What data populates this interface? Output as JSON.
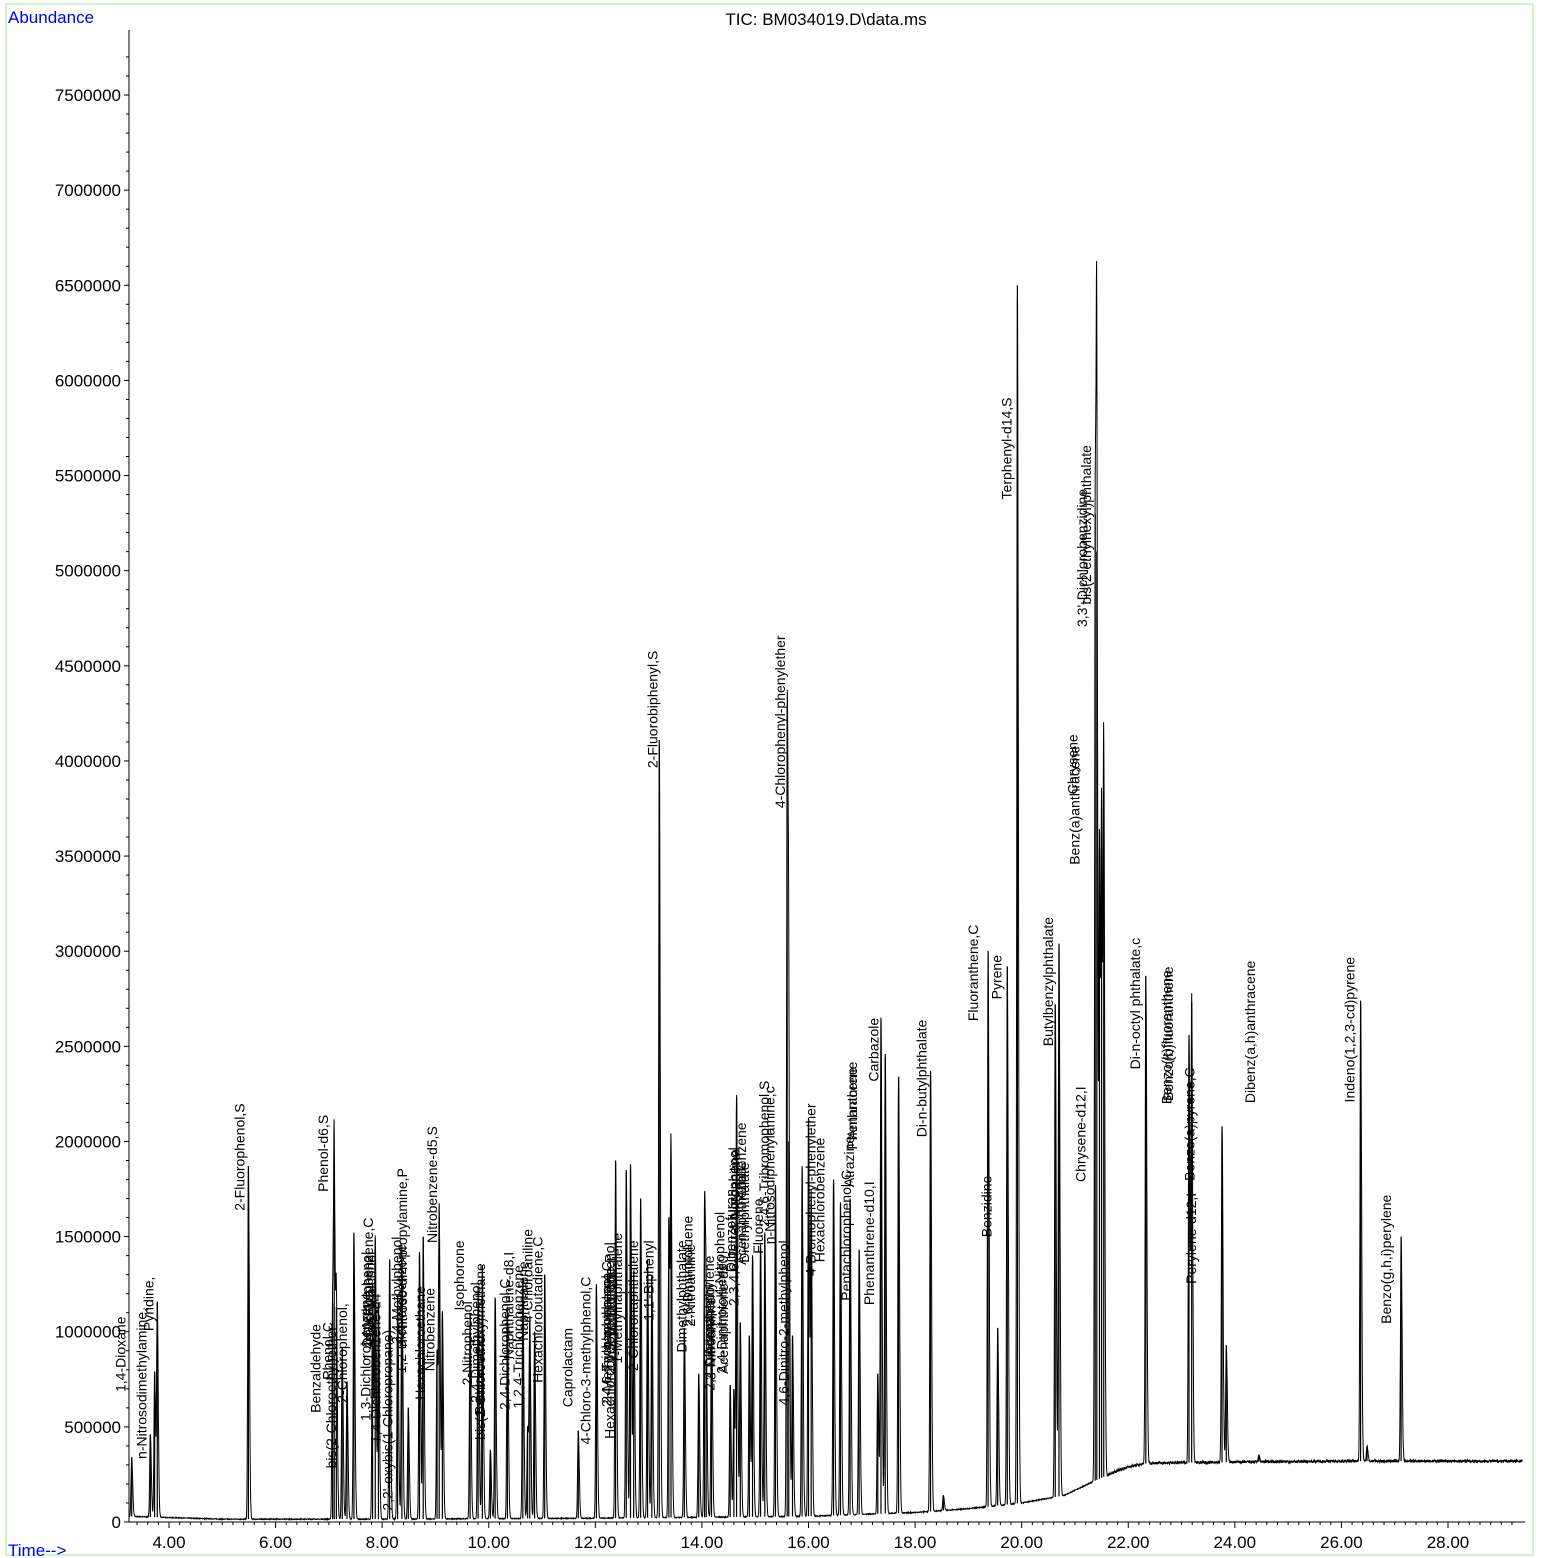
{
  "chart_data": {
    "type": "line",
    "title": "TIC: BM034019.D\\data.ms",
    "ylabel": "Abundance",
    "xlabel": "Time-->",
    "xlim": [
      3.2,
      29.4
    ],
    "ylim": [
      0,
      7800000
    ],
    "x_ticks": [
      "4.00",
      "6.00",
      "8.00",
      "10.00",
      "12.00",
      "14.00",
      "16.00",
      "18.00",
      "20.00",
      "22.00",
      "24.00",
      "26.00",
      "28.00"
    ],
    "y_ticks": [
      "0",
      "500000",
      "1000000",
      "1500000",
      "2000000",
      "2500000",
      "3000000",
      "3500000",
      "4000000",
      "4500000",
      "5000000",
      "5500000",
      "6000000",
      "6500000",
      "7000000",
      "7500000"
    ],
    "baseline": [
      [
        3.2,
        30000
      ],
      [
        5.0,
        15000
      ],
      [
        8.0,
        15000
      ],
      [
        12.0,
        20000
      ],
      [
        16.0,
        30000
      ],
      [
        18.0,
        50000
      ],
      [
        19.0,
        70000
      ],
      [
        20.0,
        100000
      ],
      [
        20.8,
        140000
      ],
      [
        21.4,
        220000
      ],
      [
        21.8,
        270000
      ],
      [
        22.0,
        290000
      ],
      [
        22.4,
        310000
      ],
      [
        24.0,
        315000
      ],
      [
        26.0,
        320000
      ],
      [
        29.4,
        320000
      ]
    ],
    "peaks": [
      {
        "rt": 3.3,
        "h": 340000,
        "label": "1,4-Dioxane"
      },
      {
        "rt": 3.65,
        "h": 460000,
        "label": ""
      },
      {
        "rt": 3.73,
        "h": 790000,
        "label": "n-Nitrosodimethylamine,"
      },
      {
        "rt": 3.78,
        "h": 1150000,
        "label": "Pyridine,"
      },
      {
        "rt": 5.49,
        "h": 1870000,
        "label": "2-Fluorophenol,S"
      },
      {
        "rt": 7.07,
        "h": 1150000,
        "label": "Benzaldehyde"
      },
      {
        "rt": 7.1,
        "h": 1800000,
        "label": "Phenol-d6,S"
      },
      {
        "rt": 7.14,
        "h": 1130000,
        "label": "Phenol,C"
      },
      {
        "rt": 7.25,
        "h": 920000,
        "label": "bis(2-Chloroethyl)ether"
      },
      {
        "rt": 7.34,
        "h": 740000,
        "label": "2-Chlorophenol,"
      },
      {
        "rt": 7.47,
        "h": 1520000,
        "label": ""
      },
      {
        "rt": 7.82,
        "h": 1250000,
        "label": "1,3-Dichlorobenzene"
      },
      {
        "rt": 7.87,
        "h": 1480000,
        "label": "1,4-Dichlorobenzene,C"
      },
      {
        "rt": 7.93,
        "h": 1150000,
        "label": "1,4-Dichlorobenzene-d4"
      },
      {
        "rt": 8.14,
        "h": 1380000,
        "label": "Benzyl alcohol"
      },
      {
        "rt": 8.29,
        "h": 1190000,
        "label": "2-Methylphenol"
      },
      {
        "rt": 8.37,
        "h": 1420000,
        "label": "1,2-Dichlorobenzene"
      },
      {
        "rt": 8.49,
        "h": 600000,
        "label": "2,2'-oxybis(1-Chloropropane)"
      },
      {
        "rt": 8.7,
        "h": 1420000,
        "label": "3,4-Methylphenol"
      },
      {
        "rt": 8.77,
        "h": 1500000,
        "label": "n-Nitroso-di-n-propylamine,P"
      },
      {
        "rt": 9.03,
        "h": 900000,
        "label": "Hexachloroethane"
      },
      {
        "rt": 9.07,
        "h": 1600000,
        "label": "Nitrobenzene-d5,S"
      },
      {
        "rt": 9.13,
        "h": 1100000,
        "label": "Nitrobenzene"
      },
      {
        "rt": 9.65,
        "h": 1100000,
        "label": "Isophorone"
      },
      {
        "rt": 9.8,
        "h": 1240000,
        "label": "2-Nitrophenol"
      },
      {
        "rt": 9.88,
        "h": 1350000,
        "label": "2,4-Dimethylphenol"
      },
      {
        "rt": 10.03,
        "h": 380000,
        "label": "Benzoic acid"
      },
      {
        "rt": 10.12,
        "h": 1180000,
        "label": "bis(2-Chloroethoxy)methane"
      },
      {
        "rt": 10.35,
        "h": 1130000,
        "label": "2,4-Dichlorophenol,C"
      },
      {
        "rt": 10.64,
        "h": 1280000,
        "label": "1,2,4-Trichlorobenzene"
      },
      {
        "rt": 10.73,
        "h": 500000,
        "label": "Naphthalene-d8,I"
      },
      {
        "rt": 10.77,
        "h": 1040000,
        "label": "Naphthalene"
      },
      {
        "rt": 10.86,
        "h": 1000000,
        "label": "4-Chloroaniline"
      },
      {
        "rt": 11.05,
        "h": 1300000,
        "label": "Hexachlorobutadiene,C"
      },
      {
        "rt": 11.68,
        "h": 480000,
        "label": "Caprolactam"
      },
      {
        "rt": 12.02,
        "h": 1250000,
        "label": "4-Chloro-3-methylphenol,C"
      },
      {
        "rt": 12.38,
        "h": 1900000,
        "label": "2-Methylnaphthalene"
      },
      {
        "rt": 12.58,
        "h": 1850000,
        "label": "1-Methylnaphthalene"
      },
      {
        "rt": 12.66,
        "h": 1880000,
        "label": "Hexachlorocyclopentadiene,P"
      },
      {
        "rt": 12.72,
        "h": 1320000,
        "label": "2,4,6-Trichlorophenol,C"
      },
      {
        "rt": 12.85,
        "h": 1700000,
        "label": "2,4,5-Trichlorophenol"
      },
      {
        "rt": 12.98,
        "h": 1380000,
        "label": "1,1'-Biphenyl"
      },
      {
        "rt": 13.06,
        "h": 1300000,
        "label": "2-Chloronaphthalene"
      },
      {
        "rt": 13.2,
        "h": 4110000,
        "label": "2-Fluorobiphenyl,S"
      },
      {
        "rt": 13.38,
        "h": 1600000,
        "label": "2-Nitroaniline"
      },
      {
        "rt": 13.42,
        "h": 1900000,
        "label": ""
      },
      {
        "rt": 13.67,
        "h": 1020000,
        "label": ""
      },
      {
        "rt": 13.94,
        "h": 780000,
        "label": "Dimethylphthalate"
      },
      {
        "rt": 14.05,
        "h": 1700000,
        "label": "2,6-Dinitrotoluene"
      },
      {
        "rt": 14.08,
        "h": 850000,
        "label": "Acenaphthylene"
      },
      {
        "rt": 14.18,
        "h": 1100000,
        "label": "3-Nitroaniline"
      },
      {
        "rt": 14.53,
        "h": 720000,
        "label": "Acenaphthene-d10"
      },
      {
        "rt": 14.6,
        "h": 700000,
        "label": "Acenaphthene,C"
      },
      {
        "rt": 14.65,
        "h": 2230000,
        "label": "2,4-Dinitrophenol"
      },
      {
        "rt": 14.72,
        "h": 1050000,
        "label": "4-Nitrophenol"
      },
      {
        "rt": 14.89,
        "h": 980000,
        "label": "Dibenzofuran"
      },
      {
        "rt": 14.95,
        "h": 1400000,
        "label": "2,4-Dinitrotoluene"
      },
      {
        "rt": 15.1,
        "h": 1460000,
        "label": "2,3,4,6-Tetrachlorophenol"
      },
      {
        "rt": 15.18,
        "h": 1520000,
        "label": "Diethylphthalate"
      },
      {
        "rt": 15.38,
        "h": 1770000,
        "label": "4-Nitroaniline"
      },
      {
        "rt": 15.6,
        "h": 4270000,
        "label": "4-Chlorophenyl-phenylether"
      },
      {
        "rt": 15.63,
        "h": 2000000,
        "label": "Fluorene"
      },
      {
        "rt": 15.7,
        "h": 980000,
        "label": "4,6-Dinitro-2-methylphenol"
      },
      {
        "rt": 15.88,
        "h": 1870000,
        "label": "Azobenzene"
      },
      {
        "rt": 16.0,
        "h": 2120000,
        "label": "n-Nitrosodiphenylamine,c"
      },
      {
        "rt": 16.05,
        "h": 1700000,
        "label": "2,4,6-Tribromophenol,S"
      },
      {
        "rt": 16.47,
        "h": 1800000,
        "label": "4-Bromophenyl-phenylether"
      },
      {
        "rt": 16.6,
        "h": 1680000,
        "label": "Hexachlorobenzene"
      },
      {
        "rt": 16.78,
        "h": 1700000,
        "label": "Atrazine"
      },
      {
        "rt": 16.95,
        "h": 1430000,
        "label": "Pentachlorophenol,C"
      },
      {
        "rt": 17.3,
        "h": 780000,
        "label": "Phenanthrene-d10,I"
      },
      {
        "rt": 17.36,
        "h": 2650000,
        "label": "Phenanthrene"
      },
      {
        "rt": 17.44,
        "h": 2460000,
        "label": "Anthracene"
      },
      {
        "rt": 17.69,
        "h": 2340000,
        "label": "Carbazole"
      },
      {
        "rt": 18.29,
        "h": 2370000,
        "label": "Di-n-butylphthalate"
      },
      {
        "rt": 18.53,
        "h": 140000,
        "label": ""
      },
      {
        "rt": 19.37,
        "h": 3000000,
        "label": "Fluoranthene,C"
      },
      {
        "rt": 19.55,
        "h": 1020000,
        "label": "Benzidine"
      },
      {
        "rt": 19.73,
        "h": 2920000,
        "label": "Pyrene"
      },
      {
        "rt": 19.92,
        "h": 6500000,
        "label": "Terphenyl-d14,S"
      },
      {
        "rt": 20.63,
        "h": 2720000,
        "label": ""
      },
      {
        "rt": 20.7,
        "h": 3040000,
        "label": "Butylbenzylphthalate"
      },
      {
        "rt": 21.38,
        "h": 5300000,
        "label": "3,3'-Dichlorobenzidine"
      },
      {
        "rt": 21.41,
        "h": 5100000,
        "label": "bis(2-ethylhexyl)phthalate"
      },
      {
        "rt": 21.46,
        "h": 3540000,
        "label": "Chrysene-d12,I"
      },
      {
        "rt": 21.5,
        "h": 3540000,
        "label": "Chrysene"
      },
      {
        "rt": 21.54,
        "h": 3900000,
        "label": "Benz(a)anthracene"
      },
      {
        "rt": 22.33,
        "h": 2870000,
        "label": "Di-n-octyl phthalate,c"
      },
      {
        "rt": 23.14,
        "h": 2560000,
        "label": "Benzo(b)fluoranthene"
      },
      {
        "rt": 23.19,
        "h": 2730000,
        "label": "Benzo(k)fluoranthene"
      },
      {
        "rt": 23.76,
        "h": 2080000,
        "label": "Perylene-d12,I"
      },
      {
        "rt": 23.84,
        "h": 930000,
        "label": "Benzo(a)pyrene,C"
      },
      {
        "rt": 24.45,
        "h": 350000,
        "label": ""
      },
      {
        "rt": 26.36,
        "h": 2740000,
        "label": "Indeno(1,2,3-cd)pyrene"
      },
      {
        "rt": 26.48,
        "h": 400000,
        "label": "Dibenz(a,h)anthracene"
      },
      {
        "rt": 27.12,
        "h": 1500000,
        "label": "Benzo(g,h,i)perylene"
      }
    ],
    "label_tops": {
      "1,4-Dioxane": 1080000,
      "n-Nitrosodimethylamine,": 1125000,
      "Pyridine,": 1290000,
      "2-Fluorophenol,S": 2200000,
      "Benzaldehyde": 1040000,
      "Phenol-d6,S": 2140000,
      "Phenol,C": 1050000,
      "bis(2-Chloroethyl)ether": 1030000,
      "2-Chlorophenol,": 1150000,
      "1,3-Dichlorobenzene": 1210000,
      "1,4-Dichlorobenzene,C": 1600000,
      "1,4-Dichlorobenzene-d4": 1200000,
      "Benzyl alcohol": 1420000,
      "2-Methylphenol": 1420000,
      "1,2-Dichlorobenzene": 1460000,
      "2,2'-oxybis(1-Chloropropane)": 1010000,
      "3,4-Methylphenol": 1500000,
      "n-Nitroso-di-n-propylamine,P": 1860000,
      "Hexachloroethane": 1240000,
      "Nitrobenzene-d5,S": 2080000,
      "Nitrobenzene": 1230000,
      "Isophorone": 1480000,
      "2-Nitrophenol": 1160000,
      "2,4-Dimethylphenol": 1260000,
      "Benzoic acid": 980000,
      "bis(2-Chloroethoxy)methane": 1360000,
      "2,4-Dichlorophenol,C": 1280000,
      "1,2,4-Trichlorobenzene": 1350000,
      "Naphthalene-d8,I": 1420000,
      "Naphthalene": 1370000,
      "4-Chloroaniline": 1540000,
      "Hexachlorobutadiene,C": 1500000,
      "Caprolactam": 1020000,
      "4-Chloro-3-methylphenol,C": 1290000,
      "2-Methylnaphthalene": 1310000,
      "1-Methylnaphthalene": 1520000,
      "Hexachlorocyclopentadiene,P": 1410000,
      "2,4,6-Trichlorophenol,C": 1370000,
      "2,4,5-Trichlorophenol": 1470000,
      "1,1'-Biphenyl": 1480000,
      "2-Chloronaphthalene": 1480000,
      "2-Fluorobiphenyl,S": 4580000,
      "2-Nitroaniline": 1460000,
      "Dimethylphthalate": 1480000,
      "2,6-Dinitrotoluene": 1610000,
      "Acenaphthylene": 1400000,
      "3-Nitroaniline": 1180000,
      "Acenaphthene-d10": 1400000,
      "Acenaphthene,C": 1900000,
      "2,4-Dinitrophenol": 1250000,
      "4-Nitrophenol": 1630000,
      "Dibenzofuran": 1750000,
      "2,4-Dinitrotoluene": 1360000,
      "2,3,4,6-Tetrachlorophenol": 1970000,
      "Diethylphthalate": 1890000,
      "4-Nitroaniline": 1960000,
      "4-Chlorophenyl-phenylether": 4660000,
      "Fluorene": 1700000,
      "4,6-Dinitro-2-methylphenol": 1480000,
      "Azobenzene": 2100000,
      "n-Nitrosodiphenylamine,c": 2290000,
      "2,4,6-Tribromophenol,S": 2320000,
      "4-Bromophenyl-phenylether": 2200000,
      "Hexachlorobenzene": 2020000,
      "Atrazine": 2030000,
      "Pentachlorophenol,C": 1850000,
      "Phenanthrene-d10,I": 1790000,
      "Phenanthrene": 2420000,
      "Anthracene": 2390000,
      "Carbazole": 2650000,
      "Di-n-butylphthalate": 2640000,
      "Fluoranthene,C": 3140000,
      "Benzidine": 1820000,
      "Pyrene": 2980000,
      "Terphenyl-d14,S": 5910000,
      "Butylbenzylphthalate": 3180000,
      "3,3'-Dichlorobenzidine": 5430000,
      "bis(2-ethylhexyl)phthalate": 5660000,
      "Chrysene-d12,I": 2290000,
      "Chrysene": 4140000,
      "Benz(a)anthracene": 4080000,
      "Di-n-octyl phthalate,c": 3070000,
      "Benzo(b)fluoranthene": 2920000,
      "Benzo(k)fluoranthene": 2900000,
      "Perylene-d12,I": 1730000,
      "Benzo(a)pyrene,C": 2390000,
      "Indeno(1,2,3-cd)pyrene": 2970000,
      "Dibenz(a,h)anthracene": 2950000,
      "Benzo(g,h,i)perylene": 1720000
    },
    "label_dx": {
      "2-Methylnaphthalene": -8,
      "1-Methylnaphthalene": -8,
      "Hexachlorocyclopentadiene,P": -20,
      "2,4,6-Trichlorophenol,C": -26,
      "2,4,5-Trichlorophenol": -30,
      "1,1'-Biphenyl": 2,
      "2-Chloronaphthalene": -18,
      "2-Nitroaniline": 22,
      "3-Nitroaniline": 0,
      "Acenaphthene-d10": -6,
      "Acenaphthene,C": 8,
      "2,4-Dinitrophenol": -26,
      "4-Nitrophenol": -20,
      "Dibenzofuran": -18,
      "2,4-Dinitrotoluene": -30,
      "2,3,4,6-Tetrachlorophenol": -26,
      "Diethylphthalate": -20,
      "4-Nitroaniline": -40,
      "Fluorene": -30,
      "4,6-Dinitro-2-methylphenol": -8,
      "Azobenzene": -60,
      "n-Nitrosodiphenylamine,c": -38,
      "2,4,6-Tribromophenol,S": -46,
      "4-Bromophenyl-phenylether": -22,
      "Hexachlorobenzene": -20,
      "Atrazine": 0,
      "Pentachlorophenol,C": -12,
      "Phenanthrene-d10,I": -8,
      "Phenanthrene": -28,
      "Anthracene": -32,
      "Carbazole": -24,
      "Chrysene-d12,I": -18,
      "Chrysene": -28,
      "Benz(a)anthracene": -28,
      "Benzo(b)fluoranthene": -20,
      "Benzo(k)fluoranthene": -24,
      "Benzo(a)pyrene,C": -36,
      "Dibenz(a,h)anthracene": -116,
      "bis(2-ethylhexyl)phthalate": -10,
      "3,3'-Dichlorobenzidine": -12,
      "Benzo(g,h,i)perylene": -14,
      "Perylene-d12,I": -30,
      "1,4-Dichlorobenzene,C": -6,
      "1,3-Dichlorobenzene": -6,
      "1,4-Dichlorobenzene-d4": -2,
      "Naphthalene-d8,I": -18,
      "Naphthalene": -6,
      "4-Chloroaniline": -6,
      "n-Nitroso-di-n-propylamine,P": -20,
      "3,4-Methylphenol": -22,
      "2-Methylphenol": -30,
      "Benzyl alcohol": -18,
      "2,2'-oxybis(1-Chloropropane)": -20,
      "Nitrobenzene": -12,
      "Hexachloroethane": -16,
      "Nitrobenzene-d5,S": -6,
      "Benzoic acid": -10,
      "bis(2-Chloroethoxy)methane": -14,
      "2,4-Dichlorophenol,C": -2,
      "1,2,4-Trichlorobenzene": -4,
      "Hexachlorobutadiene,C": -6,
      "2-Nitrophenol": -10,
      "2,4-Dimethylphenol": -6,
      "Phenol,C": -8,
      "Benzaldehyde": -16,
      "bis(2-Chloroethyl)ether": -10,
      "2-Chlorophenol,": -4,
      "Pyridine,": -8,
      "n-Nitrosodimethylamine,": -12,
      "1,4-Dioxane": -10,
      "2-Fluorophenol,S": -8,
      "Phenol-d6,S": -10,
      "2-Fluorobiphenyl,S": -6,
      "Terphenyl-d14,S": -10,
      "4-Chlorophenyl-phenylether": -6,
      "Dimethylphthalate": -16,
      "2,6-Dinitrotoluene": -16,
      "Acenaphthylene": 4,
      "Fluoranthene,C": -14,
      "Benzidine": -10,
      "Pyrene": -10,
      "Butylbenzylphthalate": -10,
      "Di-n-butylphthalate": -8,
      "Di-n-octyl phthalate,c": -10,
      "Indeno(1,2,3-cd)pyrene": -10,
      "Isophorone": -10,
      "4-Chloro-3-methylphenol,C": -10,
      "Caprolactam": -10
    }
  }
}
